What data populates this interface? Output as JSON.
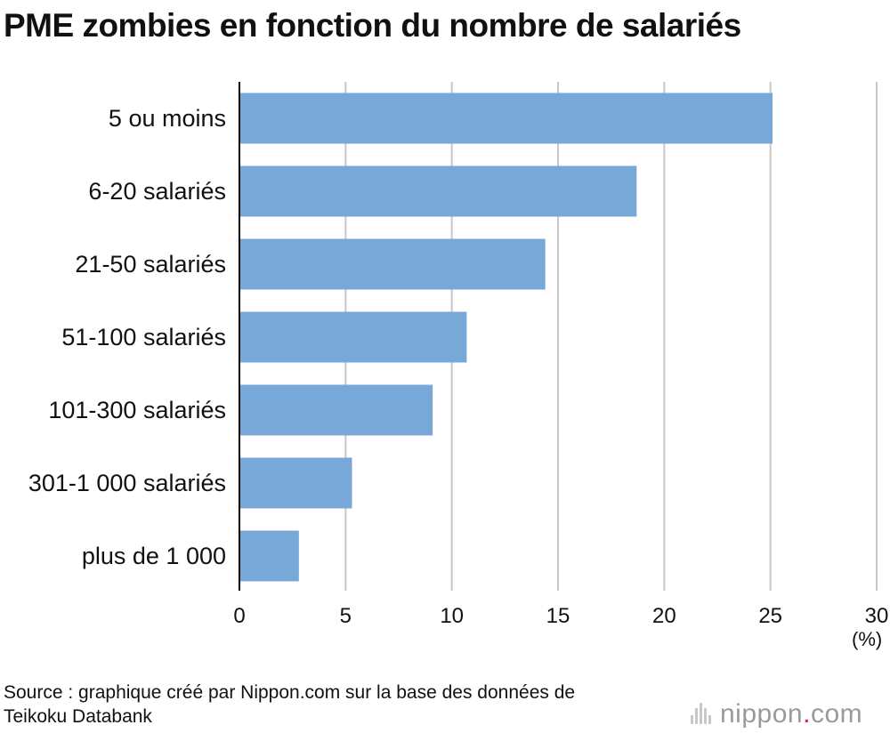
{
  "title": "PME zombies en fonction du nombre de salariés",
  "unit_label": "(%)",
  "source_line1": "Source : graphique créé par Nippon.com sur la base des données de",
  "source_line2": "Teikoku Databank",
  "logo": {
    "word": "nippon",
    "dot": ".",
    "suffix": "com",
    "icon": "nippon-wave-icon"
  },
  "chart_data": {
    "type": "bar",
    "orientation": "horizontal",
    "title": "PME zombies en fonction du nombre de salariés",
    "categories": [
      "5 ou moins",
      "6-20 salariés",
      "21-50 salariés",
      "51-100 salariés",
      "101-300 salariés",
      "301-1 000 salariés",
      "plus de 1 000"
    ],
    "values": [
      25.1,
      18.7,
      14.4,
      10.7,
      9.1,
      5.3,
      2.8
    ],
    "xlabel": "(%)",
    "xlim": [
      0,
      30
    ],
    "xticks": [
      0,
      5,
      10,
      15,
      20,
      25,
      30
    ],
    "grid": true,
    "bar_color": "#77a8d8",
    "grid_color": "#c8c8c8",
    "axis_color": "#000000"
  }
}
